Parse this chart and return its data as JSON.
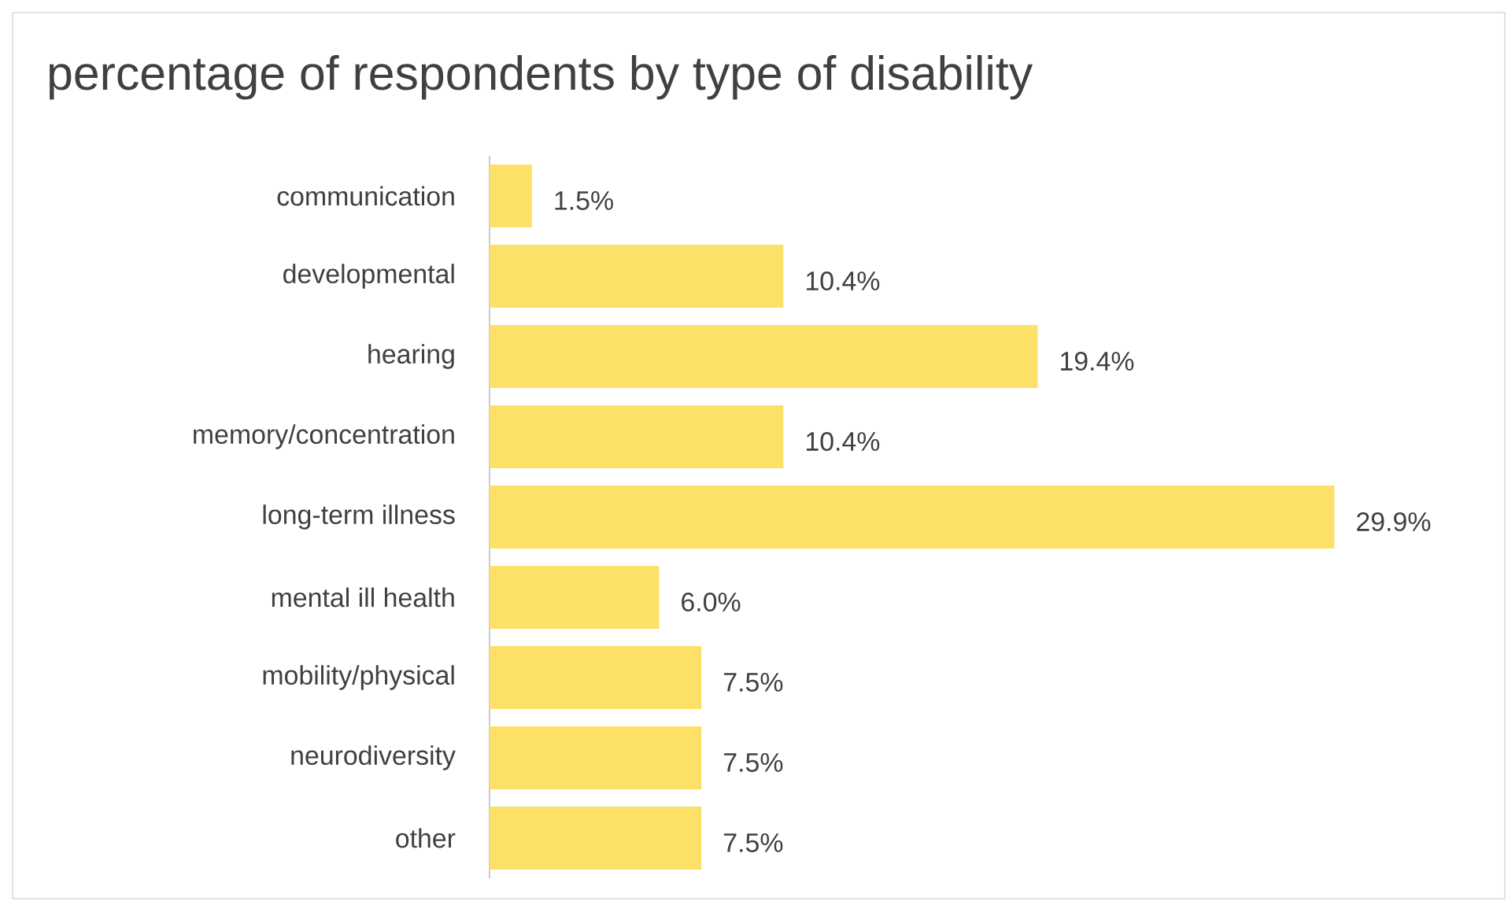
{
  "chart_data": {
    "type": "bar",
    "orientation": "horizontal",
    "title": "percentage of respondents by type of disability",
    "categories": [
      "communication",
      "developmental",
      "hearing",
      "memory/concentration",
      "long-term illness",
      "mental ill health",
      "mobility/physical",
      "neurodiversity",
      "other"
    ],
    "values": [
      1.5,
      10.4,
      19.4,
      10.4,
      29.9,
      6.0,
      7.5,
      7.5,
      7.5
    ],
    "value_labels": [
      "1.5%",
      "10.4%",
      "19.4%",
      "10.4%",
      "29.9%",
      "6.0%",
      "7.5%",
      "7.5%",
      "7.5%"
    ],
    "color": "#fde068"
  }
}
